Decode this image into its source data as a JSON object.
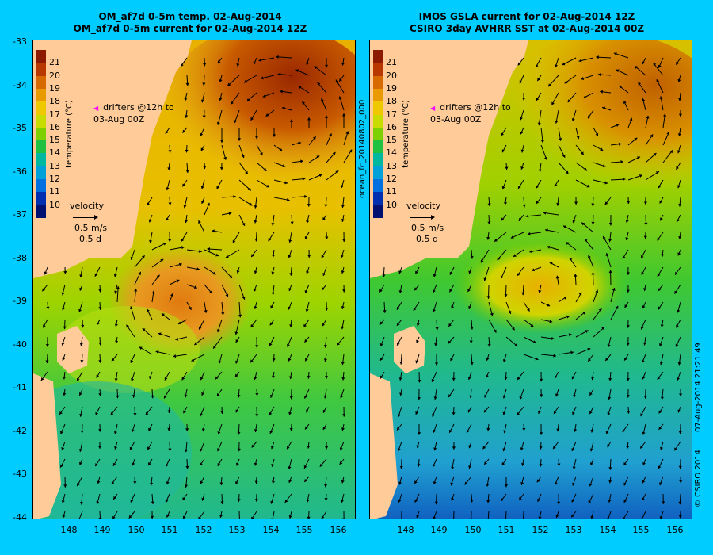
{
  "left": {
    "title_line1": "OM_af7d 0-5m temp. 02-Aug-2014",
    "title_line2": "OM_af7d 0-5m current for 02-Aug-2014 12Z"
  },
  "right": {
    "title_line1": "IMOS GSLA current for 02-Aug-2014 12Z",
    "title_line2": "CSIRO 3day AVHRR SST at 02-Aug-2014 00Z"
  },
  "axes": {
    "lat_labels": [
      "-33",
      "-34",
      "-35",
      "-36",
      "-37",
      "-38",
      "-39",
      "-40",
      "-41",
      "-42",
      "-43",
      "-44"
    ],
    "lon_labels": [
      "148",
      "149",
      "150",
      "151",
      "152",
      "153",
      "154",
      "155",
      "156"
    ]
  },
  "colorbar": {
    "label": "temperature (°C)",
    "ticks": [
      "21",
      "20",
      "19",
      "18",
      "17",
      "16",
      "15",
      "14",
      "13",
      "12",
      "11",
      "10"
    ],
    "colors": [
      "#8b1a00",
      "#b83800",
      "#d66a00",
      "#e89a00",
      "#f0c800",
      "#c8dc00",
      "#7ed000",
      "#20c040",
      "#00b8a0",
      "#00a0d8",
      "#0070e0",
      "#0030b0",
      "#001070"
    ]
  },
  "legend": {
    "drifters_line1": "drifters @12h to",
    "drifters_line2": "03-Aug 00Z",
    "velocity_title": "velocity",
    "velocity_speed": "0.5 m/s",
    "velocity_time": "0.5 d"
  },
  "side": {
    "file_label": "ocean_fc_20140802_000",
    "timestamp": "07-Aug-2014 21:21:49",
    "copyright": "© CSIRO 2014"
  }
}
